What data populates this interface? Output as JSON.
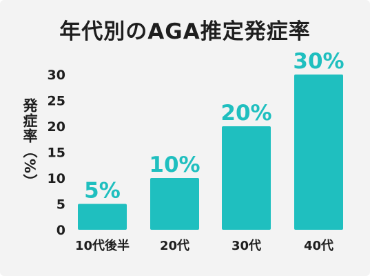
{
  "chart_data": {
    "type": "bar",
    "title": "年代別のAGA推定発症率",
    "ylabel": "発症率（%）",
    "xlabel": "",
    "categories": [
      "10代後半",
      "20代",
      "30代",
      "40代"
    ],
    "values": [
      5,
      10,
      20,
      30
    ],
    "data_labels": [
      "5%",
      "10%",
      "20%",
      "30%"
    ],
    "ylim": [
      0,
      30
    ],
    "yticks": [
      0,
      5,
      10,
      15,
      20,
      25,
      30
    ],
    "grid": false,
    "bar_color": "#1fbfbf",
    "label_color": "#1fbfbf"
  }
}
